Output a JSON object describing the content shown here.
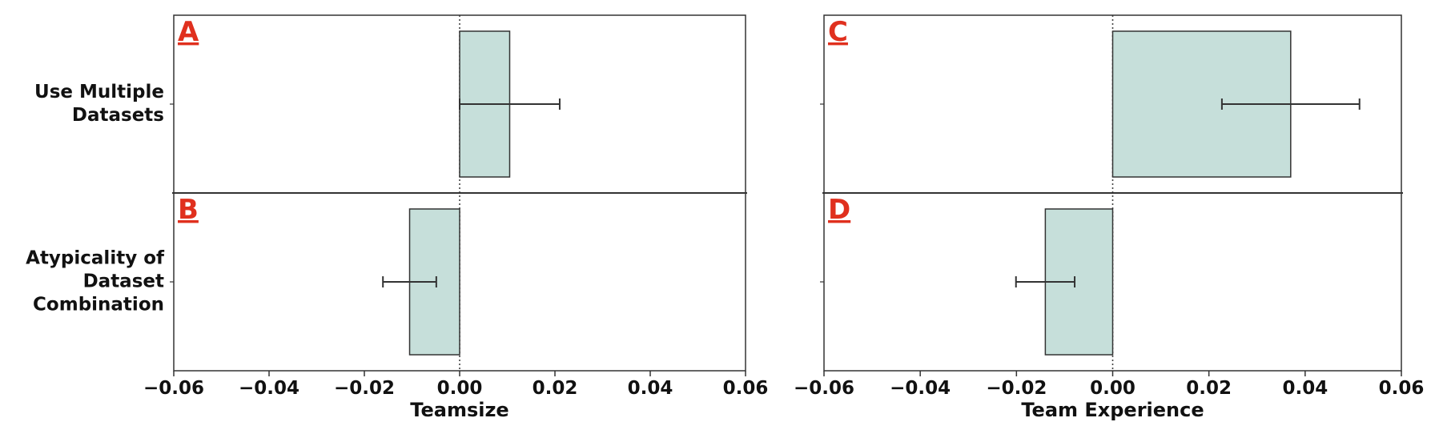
{
  "chart_data": [
    {
      "type": "bar",
      "orientation": "horizontal",
      "xlabel": "Teamsize",
      "categories": [
        "Use Multiple\nDatasets",
        "Atypicality of\nDataset\nCombination"
      ],
      "panel_labels": [
        "A",
        "B"
      ],
      "values": [
        0.0105,
        -0.0105
      ],
      "errors": [
        0.0105,
        0.0056
      ],
      "color": "#c6dfda",
      "xlim": [
        -0.06,
        0.06
      ],
      "xticks": [
        {
          "value": -0.06,
          "label": "−0.06"
        },
        {
          "value": -0.04,
          "label": "−0.04"
        },
        {
          "value": -0.02,
          "label": "−0.02"
        },
        {
          "value": 0,
          "label": "0.00"
        },
        0.02,
        0.04,
        0.06
      ]
    },
    {
      "type": "bar",
      "orientation": "horizontal",
      "xlabel": "Team Experience",
      "categories": [
        null,
        null
      ],
      "panel_labels": [
        "C",
        "D"
      ],
      "values": [
        0.037,
        -0.014
      ],
      "errors": [
        0.0143,
        0.0061
      ],
      "color": "#c6dfda",
      "xlim": [
        -0.06,
        0.06
      ],
      "xticks": [
        {
          "value": -0.06,
          "label": "−0.06"
        },
        {
          "value": -0.04,
          "label": "−0.04"
        },
        {
          "value": -0.02,
          "label": "−0.02"
        },
        {
          "value": 0,
          "label": "0.00"
        },
        0.02,
        0.04,
        0.06
      ]
    }
  ]
}
